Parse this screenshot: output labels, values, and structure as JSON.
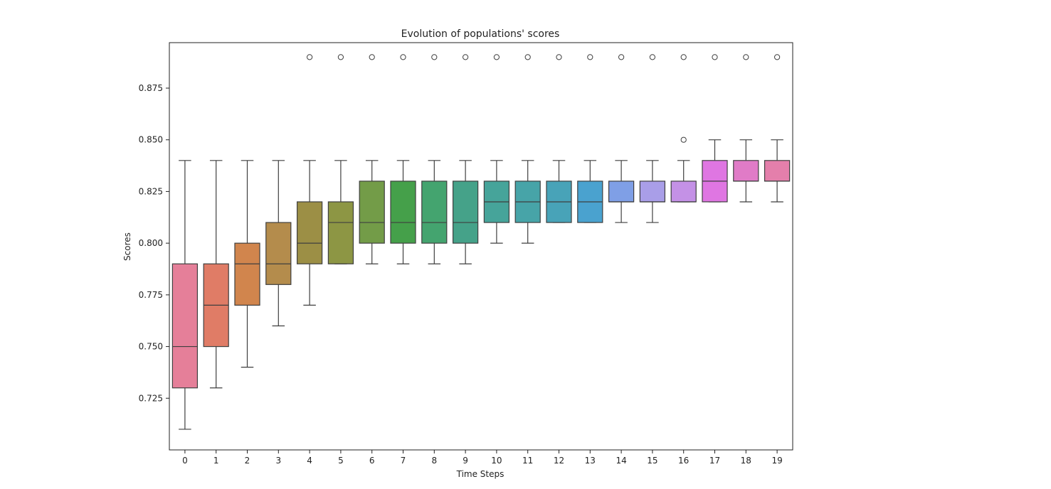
{
  "chart_data": {
    "type": "box",
    "title": "Evolution of populations' scores",
    "xlabel": "Time Steps",
    "ylabel": "Scores",
    "ylim": [
      0.7,
      0.897
    ],
    "yticks": [
      "0.725",
      "0.750",
      "0.775",
      "0.800",
      "0.825",
      "0.850",
      "0.875"
    ],
    "ytick_values": [
      0.725,
      0.75,
      0.775,
      0.8,
      0.825,
      0.85,
      0.875
    ],
    "grid": false,
    "legend": "none",
    "categories": [
      "0",
      "1",
      "2",
      "3",
      "4",
      "5",
      "6",
      "7",
      "8",
      "9",
      "10",
      "11",
      "12",
      "13",
      "14",
      "15",
      "16",
      "17",
      "18",
      "19"
    ],
    "boxes": [
      {
        "whisker_low": 0.71,
        "q1": 0.73,
        "median": 0.75,
        "q3": 0.79,
        "whisker_high": 0.84,
        "outliers": [],
        "color": "#e57f99"
      },
      {
        "whisker_low": 0.73,
        "q1": 0.75,
        "median": 0.77,
        "q3": 0.79,
        "whisker_high": 0.84,
        "outliers": [],
        "color": "#e07c66"
      },
      {
        "whisker_low": 0.74,
        "q1": 0.77,
        "median": 0.79,
        "q3": 0.8,
        "whisker_high": 0.84,
        "outliers": [],
        "color": "#d1854d"
      },
      {
        "whisker_low": 0.76,
        "q1": 0.78,
        "median": 0.79,
        "q3": 0.81,
        "whisker_high": 0.84,
        "outliers": [],
        "color": "#b48c4c"
      },
      {
        "whisker_low": 0.77,
        "q1": 0.79,
        "median": 0.8,
        "q3": 0.82,
        "whisker_high": 0.84,
        "outliers": [
          0.89
        ],
        "color": "#9c8f45"
      },
      {
        "whisker_low": 0.79,
        "q1": 0.79,
        "median": 0.81,
        "q3": 0.82,
        "whisker_high": 0.84,
        "outliers": [
          0.89
        ],
        "color": "#8d9644"
      },
      {
        "whisker_low": 0.79,
        "q1": 0.8,
        "median": 0.81,
        "q3": 0.83,
        "whisker_high": 0.84,
        "outliers": [
          0.89
        ],
        "color": "#739c48"
      },
      {
        "whisker_low": 0.79,
        "q1": 0.8,
        "median": 0.81,
        "q3": 0.83,
        "whisker_high": 0.84,
        "outliers": [
          0.89
        ],
        "color": "#45a04a"
      },
      {
        "whisker_low": 0.79,
        "q1": 0.8,
        "median": 0.81,
        "q3": 0.83,
        "whisker_high": 0.84,
        "outliers": [
          0.89
        ],
        "color": "#44a46f"
      },
      {
        "whisker_low": 0.79,
        "q1": 0.8,
        "median": 0.81,
        "q3": 0.83,
        "whisker_high": 0.84,
        "outliers": [
          0.89
        ],
        "color": "#45a289"
      },
      {
        "whisker_low": 0.8,
        "q1": 0.81,
        "median": 0.82,
        "q3": 0.83,
        "whisker_high": 0.84,
        "outliers": [
          0.89
        ],
        "color": "#46a49a"
      },
      {
        "whisker_low": 0.8,
        "q1": 0.81,
        "median": 0.82,
        "q3": 0.83,
        "whisker_high": 0.84,
        "outliers": [
          0.89
        ],
        "color": "#47a4a8"
      },
      {
        "whisker_low": 0.81,
        "q1": 0.81,
        "median": 0.82,
        "q3": 0.83,
        "whisker_high": 0.84,
        "outliers": [
          0.89
        ],
        "color": "#48a3b8"
      },
      {
        "whisker_low": 0.81,
        "q1": 0.81,
        "median": 0.82,
        "q3": 0.83,
        "whisker_high": 0.84,
        "outliers": [
          0.89
        ],
        "color": "#4aa2cf"
      },
      {
        "whisker_low": 0.81,
        "q1": 0.82,
        "median": 0.82,
        "q3": 0.83,
        "whisker_high": 0.84,
        "outliers": [
          0.89
        ],
        "color": "#7f9fe6"
      },
      {
        "whisker_low": 0.81,
        "q1": 0.82,
        "median": 0.82,
        "q3": 0.83,
        "whisker_high": 0.84,
        "outliers": [
          0.89
        ],
        "color": "#a99ee8"
      },
      {
        "whisker_low": 0.82,
        "q1": 0.82,
        "median": 0.82,
        "q3": 0.83,
        "whisker_high": 0.84,
        "outliers": [
          0.85,
          0.89
        ],
        "color": "#c491e6"
      },
      {
        "whisker_low": 0.82,
        "q1": 0.82,
        "median": 0.83,
        "q3": 0.84,
        "whisker_high": 0.85,
        "outliers": [
          0.89
        ],
        "color": "#df76e2"
      },
      {
        "whisker_low": 0.82,
        "q1": 0.83,
        "median": 0.83,
        "q3": 0.84,
        "whisker_high": 0.85,
        "outliers": [
          0.89
        ],
        "color": "#e07bc7"
      },
      {
        "whisker_low": 0.82,
        "q1": 0.83,
        "median": 0.83,
        "q3": 0.84,
        "whisker_high": 0.85,
        "outliers": [
          0.89
        ],
        "color": "#e47fab"
      }
    ]
  }
}
